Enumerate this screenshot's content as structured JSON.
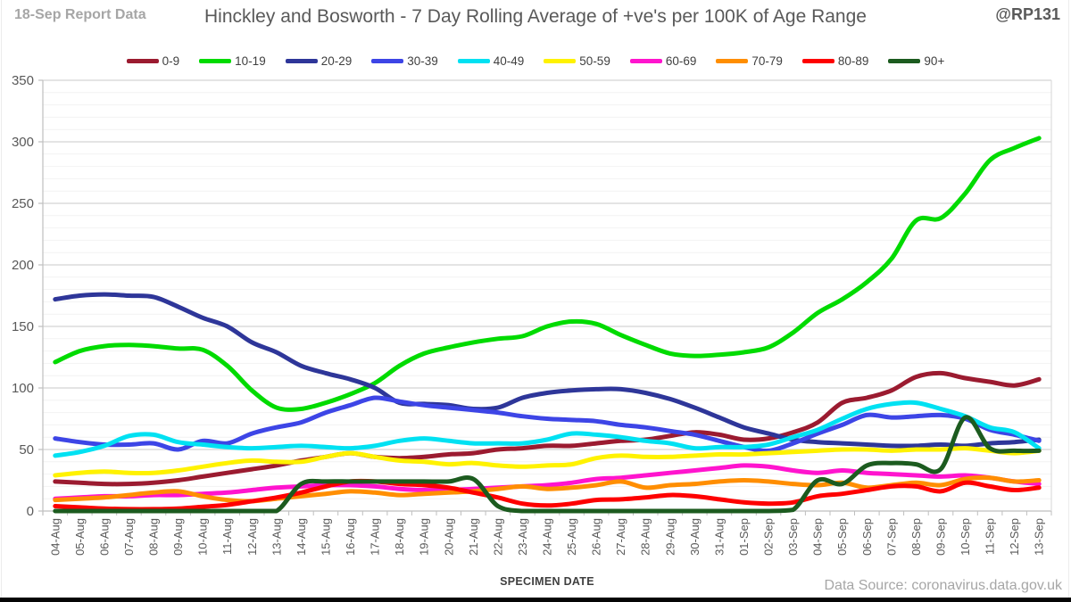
{
  "header": {
    "report_label": "18-Sep Report Data",
    "title": "Hinckley and Bosworth - 7 Day Rolling Average of +ve's per 100K of Age Range",
    "handle": "@RP131"
  },
  "footer": {
    "xlabel": "SPECIMEN DATE",
    "source": "Data Source: coronavirus.data.gov.uk"
  },
  "chart_data": {
    "type": "line",
    "title": "Hinckley and Bosworth - 7 Day Rolling Average of +ve's per 100K of Age Range",
    "xlabel": "SPECIMEN DATE",
    "ylabel": "",
    "ylim": [
      0,
      350
    ],
    "ytick_interval": 50,
    "minor_gridline_interval": 10,
    "grid": true,
    "smooth_lines": true,
    "legend_position": "top",
    "axis_text_color": "#595959",
    "categories": [
      "04-Aug",
      "05-Aug",
      "06-Aug",
      "07-Aug",
      "08-Aug",
      "09-Aug",
      "10-Aug",
      "11-Aug",
      "12-Aug",
      "13-Aug",
      "14-Aug",
      "15-Aug",
      "16-Aug",
      "17-Aug",
      "18-Aug",
      "19-Aug",
      "20-Aug",
      "21-Aug",
      "22-Aug",
      "23-Aug",
      "24-Aug",
      "25-Aug",
      "26-Aug",
      "27-Aug",
      "28-Aug",
      "29-Aug",
      "30-Aug",
      "31-Aug",
      "01-Sep",
      "02-Sep",
      "03-Sep",
      "04-Sep",
      "05-Sep",
      "06-Sep",
      "07-Sep",
      "08-Sep",
      "09-Sep",
      "10-Sep",
      "11-Sep",
      "12-Sep",
      "13-Sep"
    ],
    "series": [
      {
        "name": "0-9",
        "color": "#9B1B30",
        "values": [
          24,
          23,
          22,
          22,
          23,
          25,
          28,
          31,
          34,
          37,
          41,
          44,
          47,
          44,
          43,
          44,
          46,
          47,
          50,
          51,
          53,
          53,
          55,
          57,
          58,
          61,
          64,
          62,
          58,
          59,
          64,
          72,
          88,
          92,
          98,
          109,
          112,
          108,
          105,
          102,
          107
        ]
      },
      {
        "name": "10-19",
        "color": "#00DB00",
        "values": [
          121,
          130,
          134,
          135,
          134,
          132,
          131,
          118,
          98,
          84,
          83,
          88,
          95,
          104,
          118,
          128,
          133,
          137,
          140,
          142,
          150,
          154,
          152,
          143,
          135,
          128,
          126,
          127,
          129,
          133,
          145,
          161,
          172,
          186,
          205,
          236,
          238,
          258,
          285,
          295,
          303
        ]
      },
      {
        "name": "20-29",
        "color": "#2E3699",
        "values": [
          172,
          175,
          176,
          175,
          174,
          166,
          157,
          150,
          137,
          129,
          118,
          112,
          107,
          100,
          88,
          87,
          86,
          83,
          84,
          92,
          96,
          98,
          99,
          99,
          96,
          91,
          84,
          76,
          68,
          63,
          58,
          56,
          55,
          54,
          53,
          53,
          54,
          53,
          55,
          56,
          58
        ]
      },
      {
        "name": "30-39",
        "color": "#3D45E6",
        "values": [
          59,
          56,
          54,
          54,
          55,
          50,
          57,
          55,
          63,
          68,
          72,
          80,
          86,
          92,
          89,
          86,
          84,
          82,
          80,
          77,
          75,
          74,
          73,
          70,
          68,
          65,
          62,
          57,
          52,
          49,
          55,
          63,
          70,
          78,
          76,
          77,
          78,
          75,
          66,
          62,
          57
        ]
      },
      {
        "name": "40-49",
        "color": "#00E1F2",
        "values": [
          45,
          48,
          53,
          61,
          62,
          56,
          54,
          52,
          51,
          52,
          53,
          52,
          51,
          53,
          57,
          59,
          57,
          55,
          55,
          55,
          58,
          63,
          62,
          60,
          57,
          55,
          51,
          52,
          52,
          54,
          60,
          66,
          75,
          83,
          87,
          88,
          83,
          77,
          68,
          64,
          51
        ]
      },
      {
        "name": "50-59",
        "color": "#FFF200",
        "values": [
          29,
          31,
          32,
          31,
          31,
          33,
          36,
          39,
          41,
          40,
          40,
          44,
          47,
          44,
          41,
          40,
          38,
          39,
          37,
          36,
          37,
          38,
          43,
          45,
          44,
          44,
          45,
          46,
          46,
          47,
          48,
          49,
          50,
          50,
          49,
          50,
          50,
          51,
          49,
          47,
          49
        ]
      },
      {
        "name": "60-69",
        "color": "#FF14CE",
        "values": [
          10,
          11,
          12,
          12,
          13,
          13,
          14,
          15,
          17,
          19,
          20,
          21,
          21,
          20,
          18,
          17,
          17,
          18,
          19,
          20,
          21,
          23,
          26,
          27,
          29,
          31,
          33,
          35,
          37,
          36,
          33,
          31,
          33,
          31,
          30,
          29,
          28,
          29,
          27,
          24,
          22
        ]
      },
      {
        "name": "70-79",
        "color": "#FF8E01",
        "values": [
          9,
          10,
          11,
          13,
          15,
          16,
          12,
          9,
          8,
          10,
          12,
          14,
          16,
          15,
          13,
          14,
          15,
          16,
          18,
          20,
          18,
          19,
          21,
          24,
          19,
          21,
          22,
          24,
          25,
          24,
          22,
          21,
          23,
          19,
          21,
          23,
          21,
          26,
          27,
          24,
          25
        ]
      },
      {
        "name": "80-89",
        "color": "#FE0000",
        "values": [
          4,
          3,
          2,
          1.5,
          1.5,
          2,
          3.5,
          5,
          8,
          11,
          15,
          20,
          24,
          24,
          22,
          21,
          19,
          15,
          11,
          6,
          4.5,
          6,
          9,
          9.5,
          11,
          13,
          12,
          9.5,
          7,
          6,
          7,
          12,
          14,
          17,
          20,
          20,
          16,
          23,
          20,
          17,
          19
        ]
      },
      {
        "name": "90+",
        "color": "#1C5B1F",
        "values": [
          0,
          0,
          0,
          0,
          0,
          0,
          0,
          0,
          0,
          0,
          22,
          24,
          24,
          24,
          24,
          24,
          24,
          26,
          4,
          0,
          0,
          0,
          0,
          0,
          0,
          0,
          0,
          0,
          0,
          0,
          1,
          25,
          22,
          37,
          39,
          38,
          34,
          76,
          51,
          49,
          49
        ]
      }
    ]
  }
}
